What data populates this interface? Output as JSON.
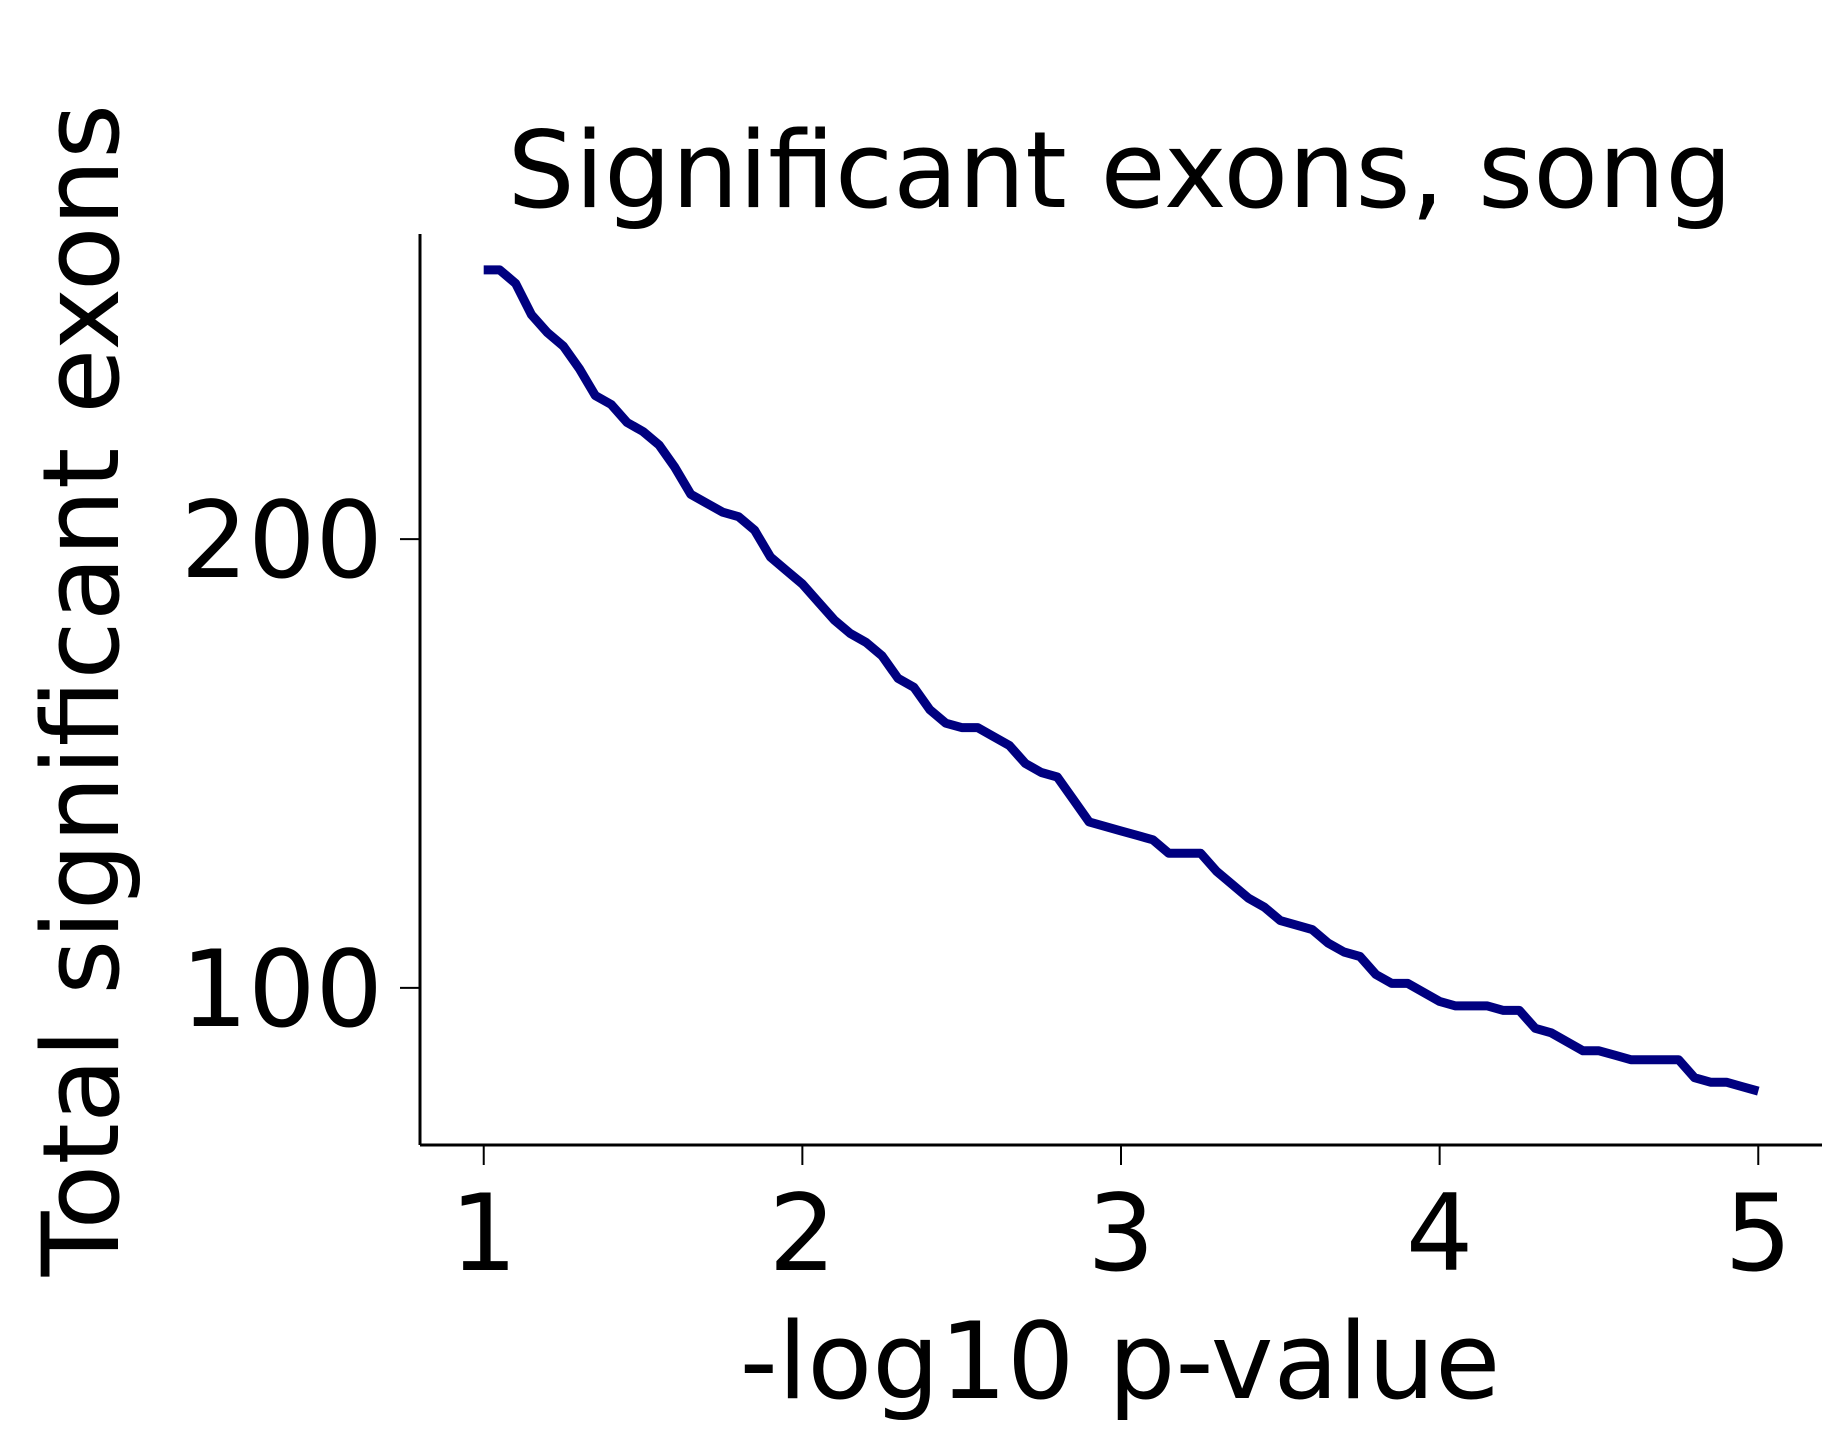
{
  "chart_data": {
    "type": "line",
    "title": "Significant exons, song",
    "xlabel": "-log10 p-value",
    "ylabel": "Total significant exons",
    "xlim": [
      0.8,
      5.2
    ],
    "ylim": [
      65,
      268
    ],
    "xticks": [
      1,
      2,
      3,
      4,
      5
    ],
    "yticks": [
      100,
      200
    ],
    "grid": false,
    "legend": "none",
    "spines": [
      "left",
      "bottom"
    ],
    "colors": {
      "line": "#000080",
      "axes": "#000000",
      "background": "#ffffff"
    },
    "series": [
      {
        "x": [
          1.0,
          1.05,
          1.1,
          1.15,
          1.2,
          1.25,
          1.3,
          1.35,
          1.4,
          1.45,
          1.5,
          1.55,
          1.6,
          1.65,
          1.7,
          1.75,
          1.8,
          1.85,
          1.9,
          1.95,
          2.0,
          2.05,
          2.1,
          2.15,
          2.2,
          2.25,
          2.3,
          2.35,
          2.4,
          2.45,
          2.5,
          2.55,
          2.6,
          2.65,
          2.7,
          2.75,
          2.8,
          2.85,
          2.9,
          2.95,
          3.0,
          3.05,
          3.1,
          3.15,
          3.2,
          3.25,
          3.3,
          3.35,
          3.4,
          3.45,
          3.5,
          3.55,
          3.6,
          3.65,
          3.7,
          3.75,
          3.8,
          3.85,
          3.9,
          3.95,
          4.0,
          4.05,
          4.1,
          4.15,
          4.2,
          4.25,
          4.3,
          4.35,
          4.4,
          4.45,
          4.5,
          4.55,
          4.6,
          4.65,
          4.7,
          4.75,
          4.8,
          4.85,
          4.9,
          4.95,
          5.0
        ],
        "values": [
          260,
          260,
          257,
          250,
          246,
          243,
          238,
          232,
          230,
          226,
          224,
          221,
          216,
          210,
          208,
          206,
          205,
          202,
          196,
          193,
          190,
          186,
          182,
          179,
          177,
          174,
          169,
          167,
          162,
          159,
          158,
          158,
          156,
          154,
          150,
          148,
          147,
          142,
          137,
          136,
          135,
          134,
          133,
          130,
          130,
          130,
          126,
          123,
          120,
          118,
          115,
          114,
          113,
          110,
          108,
          107,
          103,
          101,
          101,
          99,
          97,
          96,
          96,
          96,
          95,
          95,
          91,
          90,
          88,
          86,
          86,
          85,
          84,
          84,
          84,
          84,
          80,
          79,
          79,
          78,
          77
        ]
      }
    ]
  }
}
